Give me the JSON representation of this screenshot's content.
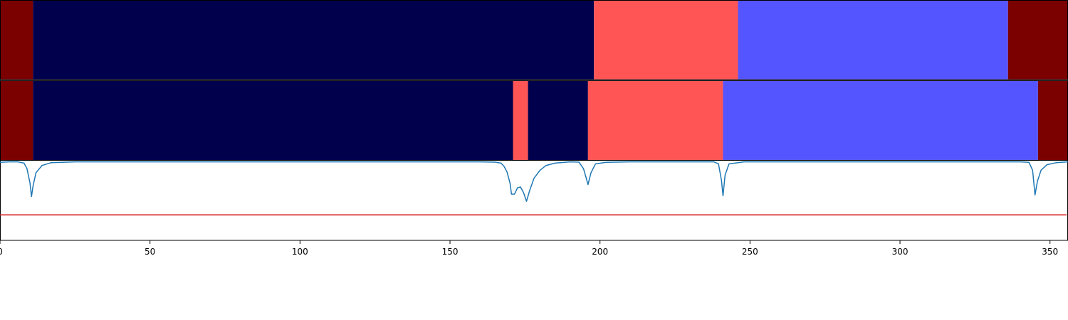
{
  "chart_data": {
    "type": "heatmap",
    "x_range": [
      0,
      356
    ],
    "x_ticks": [
      0,
      50,
      100,
      150,
      200,
      250,
      300,
      350
    ],
    "tracks": [
      {
        "segments": [
          {
            "start": 0,
            "end": 11,
            "color": "#7b0000"
          },
          {
            "start": 11,
            "end": 198,
            "color": "#00004c"
          },
          {
            "start": 198,
            "end": 246,
            "color": "#ff5555"
          },
          {
            "start": 246,
            "end": 336,
            "color": "#5555ff"
          },
          {
            "start": 336,
            "end": 356,
            "color": "#7b0000"
          }
        ]
      },
      {
        "segments": [
          {
            "start": 0,
            "end": 11,
            "color": "#7b0000"
          },
          {
            "start": 11,
            "end": 171,
            "color": "#00004c"
          },
          {
            "start": 171,
            "end": 176,
            "color": "#ff5555"
          },
          {
            "start": 176,
            "end": 196,
            "color": "#00004c"
          },
          {
            "start": 196,
            "end": 241,
            "color": "#ff5555"
          },
          {
            "start": 241,
            "end": 346,
            "color": "#5555ff"
          },
          {
            "start": 346,
            "end": 356,
            "color": "#7b0000"
          }
        ]
      }
    ],
    "line_panel": {
      "y_range": [
        0,
        1
      ],
      "threshold": 0.32,
      "threshold_color": "#d62728",
      "line_color": "#1f77b4",
      "points": [
        [
          0,
          0.98
        ],
        [
          3,
          0.985
        ],
        [
          6,
          0.985
        ],
        [
          8,
          0.97
        ],
        [
          9,
          0.9
        ],
        [
          10,
          0.72
        ],
        [
          10.5,
          0.55
        ],
        [
          11,
          0.68
        ],
        [
          12,
          0.85
        ],
        [
          14,
          0.94
        ],
        [
          17,
          0.975
        ],
        [
          25,
          0.985
        ],
        [
          100,
          0.985
        ],
        [
          150,
          0.985
        ],
        [
          160,
          0.985
        ],
        [
          165,
          0.982
        ],
        [
          167,
          0.97
        ],
        [
          168,
          0.93
        ],
        [
          169,
          0.86
        ],
        [
          170,
          0.72
        ],
        [
          170.5,
          0.58
        ],
        [
          171.5,
          0.58
        ],
        [
          172.5,
          0.66
        ],
        [
          173.5,
          0.67
        ],
        [
          174.5,
          0.6
        ],
        [
          175.5,
          0.49
        ],
        [
          176.5,
          0.62
        ],
        [
          178,
          0.78
        ],
        [
          180,
          0.88
        ],
        [
          182,
          0.94
        ],
        [
          185,
          0.97
        ],
        [
          190,
          0.985
        ],
        [
          193,
          0.982
        ],
        [
          194.5,
          0.9
        ],
        [
          195.5,
          0.77
        ],
        [
          196,
          0.7
        ],
        [
          197,
          0.85
        ],
        [
          198.5,
          0.96
        ],
        [
          202,
          0.98
        ],
        [
          210,
          0.985
        ],
        [
          238,
          0.985
        ],
        [
          239.5,
          0.96
        ],
        [
          240.5,
          0.75
        ],
        [
          241,
          0.56
        ],
        [
          241.7,
          0.82
        ],
        [
          243,
          0.96
        ],
        [
          248,
          0.985
        ],
        [
          300,
          0.985
        ],
        [
          340,
          0.985
        ],
        [
          343,
          0.98
        ],
        [
          344.2,
          0.88
        ],
        [
          345,
          0.57
        ],
        [
          345.8,
          0.74
        ],
        [
          347,
          0.88
        ],
        [
          349,
          0.95
        ],
        [
          352,
          0.975
        ],
        [
          356,
          0.985
        ]
      ]
    }
  }
}
